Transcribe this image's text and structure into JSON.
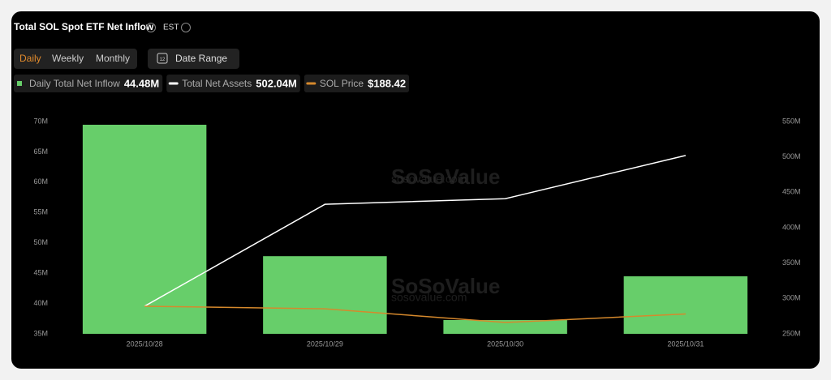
{
  "header": {
    "title": "Total SOL Spot ETF Net Inflow",
    "timezone": "EST",
    "tabs": [
      "Daily",
      "Weekly",
      "Monthly"
    ],
    "calendar_day": "12",
    "date_range": "Date Range",
    "watermark": "SoSoValue",
    "watermark_url": "sosovalue.com"
  },
  "chart_data": {
    "type": "combo",
    "categories": [
      "2025/10/28",
      "2025/10/29",
      "2025/10/30",
      "2025/10/31"
    ],
    "ylim": [
      35,
      70
    ],
    "yticks": [
      {
        "value": 35,
        "label": "35M"
      },
      {
        "value": 40,
        "label": "40M"
      },
      {
        "value": 45,
        "label": "45M"
      },
      {
        "value": 50,
        "label": "50M"
      },
      {
        "value": 55,
        "label": "55M"
      },
      {
        "value": 60,
        "label": "60M"
      },
      {
        "value": 65,
        "label": "65M"
      },
      {
        "value": 70,
        "label": "70M"
      }
    ],
    "y2lim": [
      250,
      550
    ],
    "y2ticks": [
      {
        "value": 250,
        "label": "250M"
      },
      {
        "value": 300,
        "label": "300M"
      },
      {
        "value": 350,
        "label": "350M"
      },
      {
        "value": 400,
        "label": "400M"
      },
      {
        "value": 450,
        "label": "450M"
      },
      {
        "value": 500,
        "label": "500M"
      },
      {
        "value": 550,
        "label": "550M"
      }
    ],
    "y3lim": [
      180,
      270
    ],
    "series": [
      {
        "name": "Daily Total Net Inflow",
        "type": "bar",
        "color": "#67ce6a",
        "values": [
          69.47,
          47.8,
          37.27,
          44.48
        ],
        "value_labels": [
          null,
          null,
          null,
          "44.48M"
        ]
      },
      {
        "name": "Total Net Assets",
        "type": "line",
        "axis": "y2",
        "color": "#ffffff",
        "values": [
          289,
          433,
          441,
          502.04
        ],
        "value_labels": [
          null,
          null,
          null,
          "502.04M"
        ]
      },
      {
        "name": "SOL Price",
        "type": "line",
        "axis": "y3",
        "color": "#d6892c",
        "values": [
          191.7,
          190.6,
          184.8,
          188.42
        ],
        "value_labels": [
          null,
          null,
          null,
          "$188.42"
        ]
      }
    ]
  }
}
